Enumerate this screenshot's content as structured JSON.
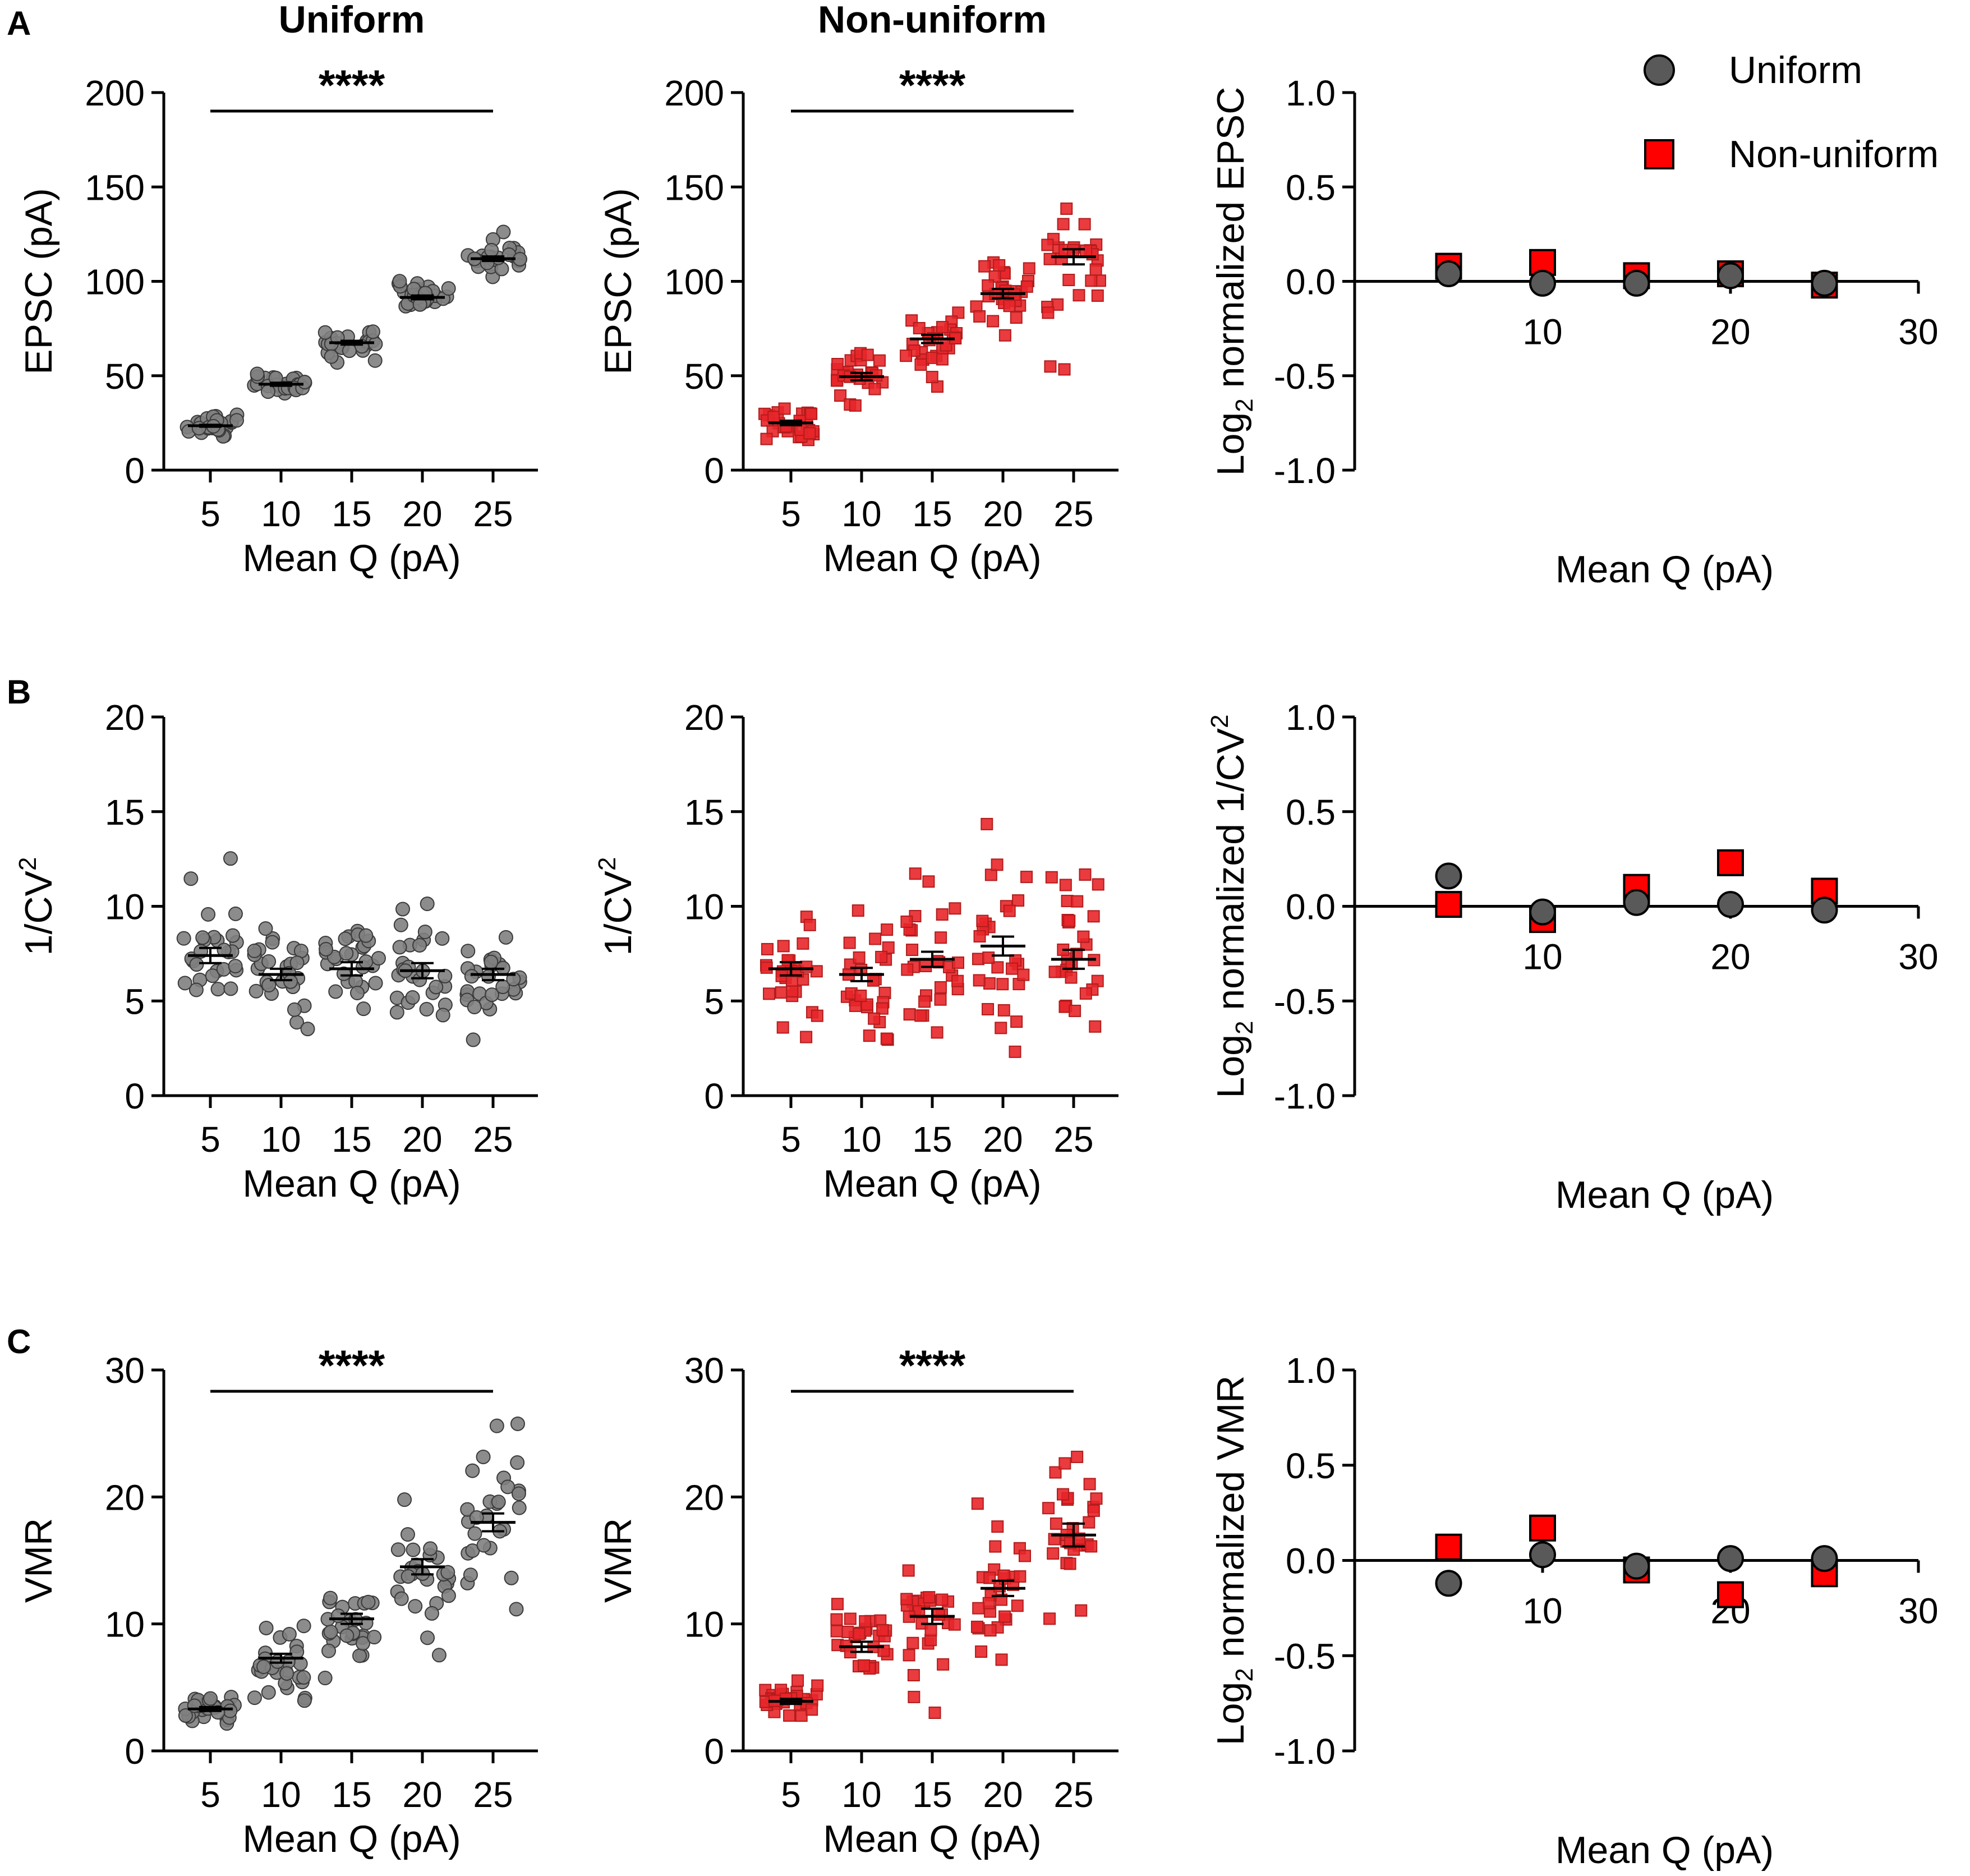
{
  "panel_letters": [
    "A",
    "B",
    "C"
  ],
  "colors": {
    "uniform_fill": "#7f7f7f",
    "uniform_marker": "#595959",
    "nonuniform_fill": "#e8262a",
    "nonuniform_marker": "#ff0000",
    "axis": "#000000"
  },
  "chart_data": [
    {
      "id": "A-uniform",
      "panel": "A",
      "type": "scatter",
      "title": "Uniform",
      "xlabel": "Mean Q (pA)",
      "ylabel": "EPSC (pA)",
      "ylim": [
        0,
        200
      ],
      "yticks": [
        0,
        50,
        100,
        150,
        200
      ],
      "categories": [
        "5",
        "10",
        "15",
        "20",
        "25"
      ],
      "means": [
        23.5,
        45.5,
        67.5,
        91.5,
        112
      ],
      "sems": [
        0.5,
        0.8,
        1.0,
        1.0,
        1.2
      ],
      "spreads": [
        2.5,
        3,
        3.5,
        3.5,
        5
      ],
      "marker": "circle",
      "significance": "****"
    },
    {
      "id": "A-nonuniform",
      "panel": "A",
      "type": "scatter",
      "title": "Non-uniform",
      "xlabel": "Mean Q (pA)",
      "ylabel": "EPSC (pA)",
      "ylim": [
        0,
        200
      ],
      "yticks": [
        0,
        50,
        100,
        150,
        200
      ],
      "categories": [
        "5",
        "10",
        "15",
        "20",
        "25"
      ],
      "means": [
        25,
        49.5,
        69.5,
        93.5,
        113
      ],
      "sems": [
        1.2,
        2,
        2.2,
        2.5,
        4
      ],
      "spreads": [
        5,
        8,
        10,
        10,
        18
      ],
      "marker": "square",
      "significance": "****"
    },
    {
      "id": "A-log",
      "panel": "A",
      "type": "scatter",
      "title": "",
      "xlabel": "Mean Q (pA)",
      "ylabel_main": "Log",
      "ylabel_sub": "2",
      "ylabel_rest": " normalized EPSC",
      "xlim": [
        0,
        30
      ],
      "xticks": [
        10,
        20,
        30
      ],
      "ylim": [
        -1.0,
        1.0
      ],
      "yticks": [
        "1.0",
        "0.5",
        "0.0",
        "-0.5",
        "-1.0"
      ],
      "series": [
        {
          "name": "Uniform",
          "marker": "circle",
          "x": [
            5,
            10,
            15,
            20,
            25
          ],
          "y": [
            0.04,
            -0.01,
            -0.01,
            0.03,
            -0.01
          ]
        },
        {
          "name": "Non-uniform",
          "marker": "square",
          "x": [
            5,
            10,
            15,
            20,
            25
          ],
          "y": [
            0.08,
            0.1,
            0.03,
            0.04,
            -0.02
          ]
        }
      ],
      "legend": [
        "Uniform",
        "Non-uniform"
      ]
    },
    {
      "id": "B-uniform",
      "panel": "B",
      "type": "scatter",
      "title": "",
      "xlabel": "Mean Q (pA)",
      "ylabel_main": "1/CV",
      "ylabel_sup": "2",
      "ylim": [
        0,
        20
      ],
      "yticks": [
        0,
        5,
        10,
        15,
        20
      ],
      "categories": [
        "5",
        "10",
        "15",
        "20",
        "25"
      ],
      "means": [
        7.4,
        6.4,
        6.7,
        6.6,
        6.4
      ],
      "sems": [
        0.4,
        0.3,
        0.35,
        0.4,
        0.3
      ],
      "spreads": [
        1.5,
        1.5,
        1.4,
        1.6,
        1.3
      ],
      "marker": "circle"
    },
    {
      "id": "B-nonuniform",
      "panel": "B",
      "type": "scatter",
      "title": "",
      "xlabel": "Mean Q (pA)",
      "ylabel_main": "1/CV",
      "ylabel_sup": "2",
      "ylim": [
        0,
        20
      ],
      "yticks": [
        0,
        5,
        10,
        15,
        20
      ],
      "categories": [
        "5",
        "10",
        "15",
        "20",
        "25"
      ],
      "means": [
        6.7,
        6.4,
        7.2,
        7.9,
        7.2
      ],
      "sems": [
        0.35,
        0.35,
        0.4,
        0.5,
        0.5
      ],
      "spreads": [
        1.6,
        1.6,
        2.0,
        2.2,
        2.3
      ],
      "marker": "square"
    },
    {
      "id": "B-log",
      "panel": "B",
      "type": "scatter",
      "title": "",
      "xlabel": "Mean Q (pA)",
      "ylabel_main": "Log",
      "ylabel_sub": "2",
      "ylabel_rest": " normalized 1/CV",
      "ylabel_sup": "2",
      "xlim": [
        0,
        30
      ],
      "xticks": [
        10,
        20,
        30
      ],
      "ylim": [
        -1.0,
        1.0
      ],
      "yticks": [
        "1.0",
        "0.5",
        "0.0",
        "-0.5",
        "-1.0"
      ],
      "series": [
        {
          "name": "Uniform",
          "marker": "circle",
          "x": [
            5,
            10,
            15,
            20,
            25
          ],
          "y": [
            0.16,
            -0.03,
            0.02,
            0.01,
            -0.02
          ]
        },
        {
          "name": "Non-uniform",
          "marker": "square",
          "x": [
            5,
            10,
            15,
            20,
            25
          ],
          "y": [
            0.01,
            -0.07,
            0.1,
            0.23,
            0.08
          ]
        }
      ]
    },
    {
      "id": "C-uniform",
      "panel": "C",
      "type": "scatter",
      "title": "",
      "xlabel": "Mean Q (pA)",
      "ylabel": "VMR",
      "ylim": [
        0,
        30
      ],
      "yticks": [
        0,
        10,
        20,
        30
      ],
      "categories": [
        "5",
        "10",
        "15",
        "20",
        "25"
      ],
      "means": [
        3.3,
        7.3,
        10.4,
        14.5,
        18
      ],
      "sems": [
        0.15,
        0.35,
        0.4,
        0.6,
        0.7
      ],
      "spreads": [
        0.6,
        1.5,
        2.0,
        3.0,
        3.0
      ],
      "marker": "circle",
      "significance": "****"
    },
    {
      "id": "C-nonuniform",
      "panel": "C",
      "type": "scatter",
      "title": "",
      "xlabel": "Mean Q (pA)",
      "ylabel": "VMR",
      "ylim": [
        0,
        30
      ],
      "yticks": [
        0,
        10,
        20,
        30
      ],
      "categories": [
        "5",
        "10",
        "15",
        "20",
        "25"
      ],
      "means": [
        3.9,
        8.2,
        10.6,
        12.8,
        17
      ],
      "sems": [
        0.2,
        0.4,
        0.6,
        0.6,
        0.9
      ],
      "spreads": [
        0.8,
        1.4,
        2.8,
        2.8,
        4.0
      ],
      "marker": "square",
      "significance": "****"
    },
    {
      "id": "C-log",
      "panel": "C",
      "type": "scatter",
      "title": "",
      "xlabel": "Mean Q (pA)",
      "ylabel_main": "Log",
      "ylabel_sub": "2",
      "ylabel_rest": " normalized VMR",
      "xlim": [
        0,
        30
      ],
      "xticks": [
        10,
        20,
        30
      ],
      "ylim": [
        -1.0,
        1.0
      ],
      "yticks": [
        "1.0",
        "0.5",
        "0.0",
        "-0.5",
        "-1.0"
      ],
      "series": [
        {
          "name": "Uniform",
          "marker": "circle",
          "x": [
            5,
            10,
            15,
            20,
            25
          ],
          "y": [
            -0.12,
            0.03,
            -0.03,
            0.01,
            0.01
          ]
        },
        {
          "name": "Non-uniform",
          "marker": "square",
          "x": [
            5,
            10,
            15,
            20,
            25
          ],
          "y": [
            0.07,
            0.17,
            -0.05,
            -0.18,
            -0.07
          ]
        }
      ]
    }
  ]
}
